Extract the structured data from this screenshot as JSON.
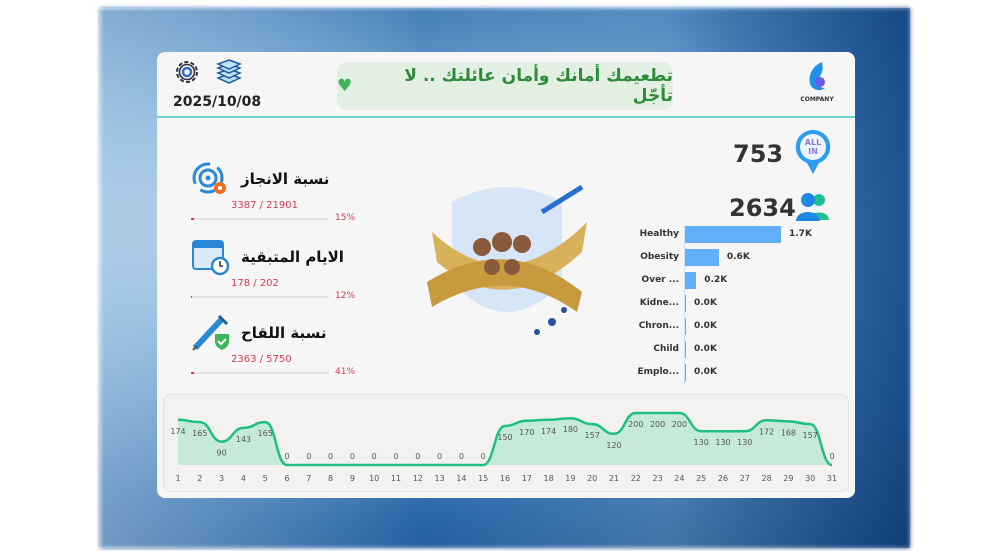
{
  "header": {
    "date": "2025/10/08",
    "banner": "تطعيمك أمانك وأمان عائلتك .. لا تأجّل",
    "banner_icon": "green-heart-icon",
    "logo_text": "COMPANY"
  },
  "kpis": [
    {
      "title": "نسبة الانجاز",
      "ratio": "3387 / 21901",
      "percent": "15%",
      "fill": 0.02,
      "icon": "target-gear-icon"
    },
    {
      "title": "الايام المتبقية",
      "ratio": "178 / 202",
      "percent": "12%",
      "fill": 0.01,
      "icon": "calendar-clock-icon"
    },
    {
      "title": "نسبة اللقاح",
      "ratio": "2363 / 5750",
      "percent": "41%",
      "fill": 0.02,
      "icon": "syringe-shield-icon"
    }
  ],
  "stats": {
    "all_in": "753",
    "all_in_badge": "ALL IN",
    "people": "2634"
  },
  "chart_data": [
    {
      "type": "bar",
      "orientation": "horizontal",
      "categories": [
        "Healthy",
        "Obesity",
        "Over ...",
        "Kidne...",
        "Chron...",
        "Child",
        "Emplo..."
      ],
      "values": [
        1700,
        600,
        200,
        0,
        0,
        0,
        0
      ],
      "labels": [
        "1.7K",
        "0.6K",
        "0.2K",
        "0.0K",
        "0.0K",
        "0.0K",
        "0.0K"
      ],
      "color": "#62aef8"
    },
    {
      "type": "area",
      "x": [
        1,
        2,
        3,
        4,
        5,
        6,
        7,
        8,
        9,
        10,
        11,
        12,
        13,
        14,
        15,
        16,
        17,
        18,
        19,
        20,
        21,
        22,
        23,
        24,
        25,
        26,
        27,
        28,
        29,
        30,
        31
      ],
      "values": [
        174,
        165,
        90,
        143,
        165,
        0,
        0,
        0,
        0,
        0,
        0,
        0,
        0,
        0,
        0,
        150,
        170,
        174,
        180,
        157,
        120,
        200,
        200,
        200,
        130,
        130,
        130,
        172,
        168,
        157,
        0
      ],
      "color": "#1fbf82",
      "ylim": [
        0,
        200
      ]
    }
  ]
}
